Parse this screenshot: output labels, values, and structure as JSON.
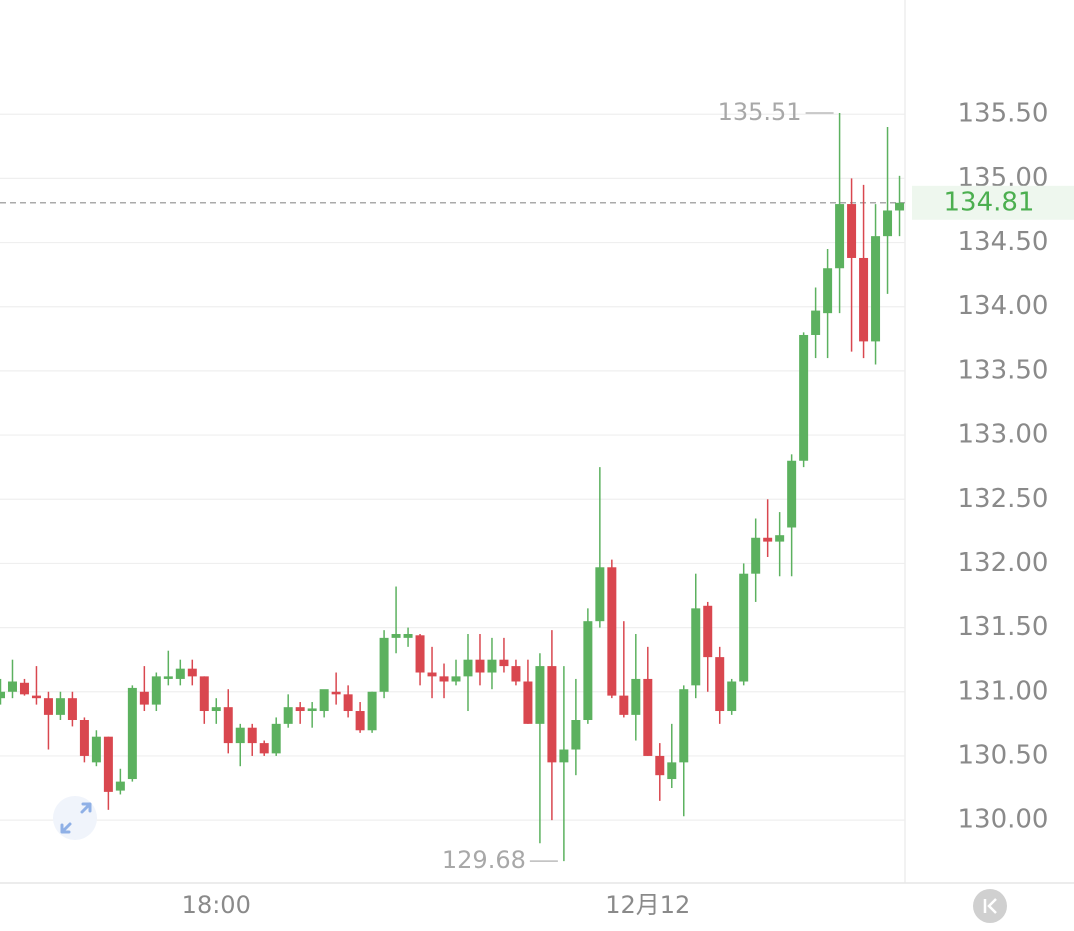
{
  "chart_data": {
    "type": "candlestick",
    "categories": [
      null,
      null,
      null,
      null,
      null,
      null,
      null,
      null,
      null,
      null,
      null,
      null,
      null,
      null,
      null,
      null,
      null,
      null,
      "18:00",
      null,
      null,
      null,
      null,
      null,
      null,
      null,
      null,
      null,
      null,
      null,
      null,
      null,
      null,
      null,
      null,
      null,
      null,
      null,
      null,
      null,
      null,
      null,
      null,
      null,
      null,
      null,
      null,
      null,
      null,
      null,
      null,
      null,
      null,
      null,
      "12月12",
      null,
      null,
      null,
      null,
      null,
      null,
      null,
      null,
      null,
      null,
      null,
      null,
      null,
      null,
      null,
      null,
      null,
      null,
      null,
      null,
      null
    ],
    "open": [
      130.95,
      131.0,
      131.07,
      130.97,
      130.95,
      130.82,
      130.95,
      130.78,
      130.45,
      130.65,
      130.23,
      130.32,
      131.0,
      130.9,
      131.1,
      131.1,
      131.18,
      131.12,
      130.85,
      130.88,
      130.6,
      130.72,
      130.6,
      130.52,
      130.75,
      130.88,
      130.85,
      130.85,
      131.0,
      130.98,
      130.85,
      130.7,
      131.0,
      131.42,
      131.42,
      131.44,
      131.15,
      131.12,
      131.08,
      131.12,
      131.25,
      131.15,
      131.25,
      131.2,
      131.08,
      130.75,
      131.2,
      130.45,
      130.55,
      130.78,
      131.55,
      131.97,
      130.97,
      130.82,
      131.1,
      130.5,
      130.32,
      130.45,
      131.05,
      131.67,
      131.27,
      130.85,
      131.08,
      131.92,
      132.2,
      132.17,
      132.28,
      132.8,
      133.78,
      133.95,
      134.3,
      134.8,
      134.38,
      133.73,
      134.55,
      134.75
    ],
    "high": [
      131.1,
      131.25,
      131.1,
      131.2,
      131.0,
      131.0,
      131.0,
      130.8,
      130.7,
      130.65,
      130.4,
      131.05,
      131.2,
      131.15,
      131.32,
      131.25,
      131.25,
      131.12,
      130.95,
      131.02,
      130.75,
      130.75,
      130.62,
      130.8,
      130.98,
      130.92,
      130.92,
      131.0,
      131.15,
      131.05,
      130.92,
      131.0,
      131.48,
      131.82,
      131.5,
      131.45,
      131.35,
      131.22,
      131.25,
      131.45,
      131.45,
      131.42,
      131.42,
      131.25,
      131.25,
      131.3,
      131.48,
      131.2,
      131.1,
      131.65,
      132.75,
      132.03,
      131.55,
      131.45,
      131.35,
      130.6,
      130.75,
      131.05,
      131.92,
      131.7,
      131.35,
      131.1,
      132.0,
      132.35,
      132.5,
      132.4,
      132.85,
      133.8,
      134.15,
      134.45,
      135.51,
      135.0,
      134.95,
      134.8,
      135.4,
      135.02
    ],
    "low": [
      130.9,
      130.95,
      130.97,
      130.9,
      130.55,
      130.78,
      130.73,
      130.45,
      130.42,
      130.08,
      130.2,
      130.3,
      130.85,
      130.85,
      131.05,
      131.05,
      131.05,
      130.75,
      130.75,
      130.52,
      130.42,
      130.5,
      130.5,
      130.5,
      130.72,
      130.75,
      130.72,
      130.8,
      130.9,
      130.8,
      130.68,
      130.68,
      130.95,
      131.3,
      131.35,
      131.05,
      130.95,
      130.95,
      131.05,
      130.85,
      131.05,
      131.02,
      131.15,
      131.05,
      130.75,
      129.82,
      130.0,
      129.68,
      130.35,
      130.75,
      131.5,
      130.95,
      130.8,
      130.62,
      130.5,
      130.15,
      130.25,
      130.03,
      130.95,
      131.0,
      130.75,
      130.82,
      131.05,
      131.7,
      132.05,
      131.9,
      131.9,
      132.75,
      133.6,
      133.6,
      133.95,
      133.65,
      133.6,
      133.55,
      134.1,
      134.55
    ],
    "close": [
      131.0,
      131.08,
      130.98,
      130.95,
      130.82,
      130.95,
      130.78,
      130.5,
      130.65,
      130.22,
      130.3,
      131.03,
      130.9,
      131.12,
      131.12,
      131.18,
      131.12,
      130.85,
      130.88,
      130.6,
      130.72,
      130.6,
      130.52,
      130.75,
      130.88,
      130.85,
      130.87,
      131.02,
      130.98,
      130.85,
      130.7,
      131.0,
      131.42,
      131.45,
      131.45,
      131.15,
      131.12,
      131.08,
      131.12,
      131.25,
      131.15,
      131.25,
      131.2,
      131.08,
      130.75,
      131.2,
      130.45,
      130.55,
      130.78,
      131.55,
      131.97,
      130.97,
      130.82,
      131.1,
      130.5,
      130.35,
      130.45,
      131.02,
      131.65,
      131.27,
      130.85,
      131.08,
      131.92,
      132.2,
      132.17,
      132.22,
      132.8,
      133.78,
      133.97,
      134.3,
      134.8,
      134.38,
      133.73,
      134.55,
      134.75,
      134.81
    ],
    "up_color": "#5cb15f",
    "down_color": "#d9474f",
    "ylim": [
      129.51,
      136.39
    ],
    "yticks": [
      {
        "value": 130,
        "label": "130.00"
      },
      {
        "value": 130.5,
        "label": "130.50"
      },
      {
        "value": 131,
        "label": "131.00"
      },
      {
        "value": 131.5,
        "label": "131.50"
      },
      {
        "value": 132,
        "label": "132.00"
      },
      {
        "value": 132.5,
        "label": "132.50"
      },
      {
        "value": 133,
        "label": "133.00"
      },
      {
        "value": 133.5,
        "label": "133.50"
      },
      {
        "value": 134,
        "label": "134.00"
      },
      {
        "value": 134.5,
        "label": "134.50"
      },
      {
        "value": 135,
        "label": "135.00"
      },
      {
        "value": 135.5,
        "label": "135.50"
      }
    ],
    "grid": true,
    "max_annotation": 135.51,
    "min_annotation": 129.68,
    "last_price": 134.81
  }
}
